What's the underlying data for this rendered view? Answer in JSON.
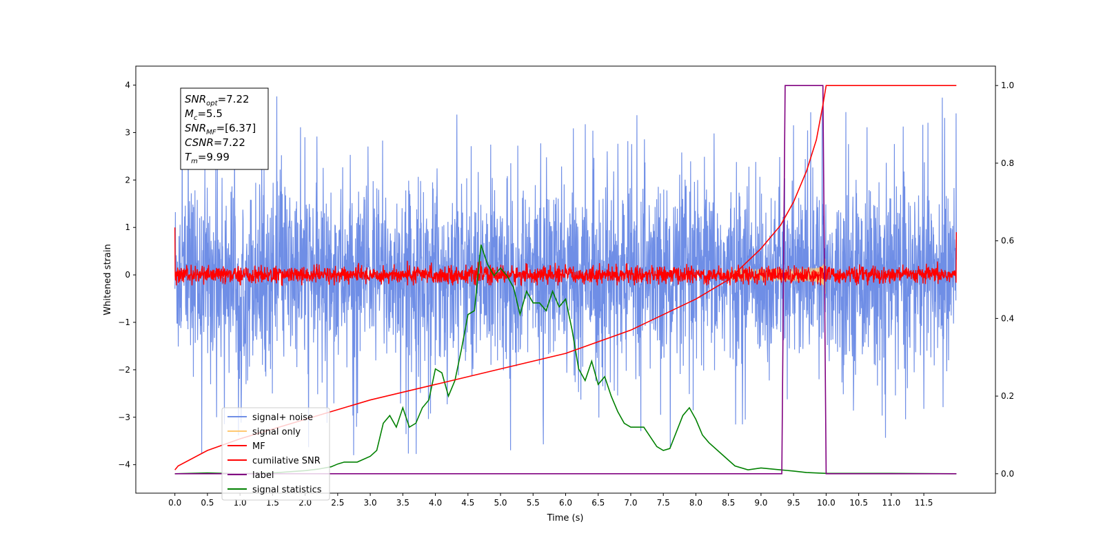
{
  "chart_data": {
    "type": "line",
    "xlabel": "Time (s)",
    "ylabel": "Whitened strain",
    "xlim": [
      -0.6,
      12.6
    ],
    "ylim_left": [
      -4.6,
      4.4
    ],
    "ylim_right": [
      -0.05,
      1.05
    ],
    "x_ticks": [
      "0.0",
      "0.5",
      "1.0",
      "1.5",
      "2.0",
      "2.5",
      "3.0",
      "3.5",
      "4.0",
      "4.5",
      "5.0",
      "5.5",
      "6.0",
      "6.5",
      "7.0",
      "7.5",
      "8.0",
      "8.5",
      "9.0",
      "9.5",
      "10.0",
      "10.5",
      "11.0",
      "11.5"
    ],
    "y_left_ticks": [
      "−4",
      "−3",
      "−2",
      "−1",
      "0",
      "1",
      "2",
      "3",
      "4"
    ],
    "y_right_ticks": [
      "0.0",
      "0.2",
      "0.4",
      "0.6",
      "0.8",
      "1.0"
    ],
    "grid": false,
    "legend_position": "lower-left",
    "legend": [
      {
        "label": "signal+ noise",
        "color": "#6f8ee6"
      },
      {
        "label": "signal only",
        "color": "#ffc870"
      },
      {
        "label": "MF",
        "color": "#ff0000"
      },
      {
        "label": "cumilative SNR",
        "color": "#ff0000"
      },
      {
        "label": "label",
        "color": "#800080"
      },
      {
        "label": "signal statistics",
        "color": "#008000"
      }
    ],
    "annotation": {
      "lines": [
        {
          "sym": "SNR",
          "sub": "opt",
          "value": "=7.22"
        },
        {
          "sym": "M",
          "sub": "c",
          "value": "=5.5"
        },
        {
          "sym": "SNR",
          "sub": "MF",
          "value": "=[6.37]"
        },
        {
          "sym": "CSNR",
          "sub": "",
          "value": "=7.22"
        },
        {
          "sym": "T",
          "sub": "m",
          "value": "=9.99"
        }
      ]
    },
    "series": [
      {
        "name": "signal+ noise",
        "axis": "left",
        "color": "#6f8ee6",
        "x_range": [
          0.0,
          12.0
        ],
        "envelope": {
          "typical_low": -1.3,
          "typical_high": 1.3,
          "spike_max": 4.0,
          "spike_min": -3.8
        }
      },
      {
        "name": "signal only",
        "axis": "left",
        "color": "#ffc870",
        "chirp": {
          "t_start": 8.5,
          "t_merge": 9.99,
          "peak_amplitude": 0.5
        }
      },
      {
        "name": "MF",
        "axis": "left",
        "color": "#ff0000",
        "x_range": [
          0.0,
          12.0
        ],
        "envelope": {
          "typical_low": -0.2,
          "typical_high": 0.25,
          "start_value": 1.0,
          "end_value": 0.9
        }
      },
      {
        "name": "cumilative SNR",
        "axis": "right",
        "color": "#ff0000",
        "x": [
          0.0,
          0.05,
          0.5,
          1.0,
          2.0,
          3.0,
          4.0,
          5.0,
          6.0,
          7.0,
          8.0,
          8.5,
          9.0,
          9.3,
          9.5,
          9.7,
          9.85,
          9.95,
          10.0,
          11.0,
          12.0
        ],
        "values": [
          0.01,
          0.02,
          0.06,
          0.09,
          0.14,
          0.19,
          0.23,
          0.27,
          0.31,
          0.37,
          0.45,
          0.5,
          0.58,
          0.64,
          0.7,
          0.78,
          0.86,
          0.95,
          1.0,
          1.0,
          1.0
        ]
      },
      {
        "name": "label",
        "axis": "right",
        "color": "#800080",
        "x": [
          0.0,
          9.32,
          9.37,
          9.95,
          10.0,
          12.0
        ],
        "values": [
          0.0,
          0.0,
          1.0,
          1.0,
          0.0,
          0.0
        ]
      },
      {
        "name": "signal statistics",
        "axis": "right",
        "color": "#008000",
        "x": [
          0.0,
          0.5,
          1.0,
          1.5,
          2.0,
          2.2,
          2.4,
          2.5,
          2.6,
          2.8,
          3.0,
          3.1,
          3.2,
          3.3,
          3.4,
          3.5,
          3.6,
          3.7,
          3.8,
          3.9,
          4.0,
          4.1,
          4.2,
          4.3,
          4.4,
          4.5,
          4.6,
          4.7,
          4.8,
          4.9,
          5.0,
          5.1,
          5.2,
          5.3,
          5.4,
          5.5,
          5.6,
          5.7,
          5.8,
          5.9,
          6.0,
          6.1,
          6.2,
          6.3,
          6.4,
          6.5,
          6.6,
          6.7,
          6.8,
          6.9,
          7.0,
          7.2,
          7.4,
          7.5,
          7.6,
          7.8,
          7.9,
          8.0,
          8.1,
          8.2,
          8.4,
          8.6,
          8.8,
          9.0,
          9.3,
          9.5,
          9.7,
          10.0,
          11.0,
          12.0
        ],
        "values": [
          0.0,
          0.002,
          0.0,
          0.002,
          0.008,
          0.012,
          0.018,
          0.025,
          0.03,
          0.03,
          0.045,
          0.06,
          0.13,
          0.15,
          0.12,
          0.17,
          0.12,
          0.13,
          0.17,
          0.19,
          0.27,
          0.26,
          0.2,
          0.24,
          0.32,
          0.41,
          0.42,
          0.59,
          0.54,
          0.51,
          0.53,
          0.51,
          0.48,
          0.41,
          0.47,
          0.44,
          0.44,
          0.42,
          0.47,
          0.43,
          0.45,
          0.37,
          0.27,
          0.24,
          0.29,
          0.23,
          0.25,
          0.2,
          0.16,
          0.13,
          0.12,
          0.12,
          0.07,
          0.06,
          0.065,
          0.15,
          0.17,
          0.14,
          0.1,
          0.08,
          0.05,
          0.02,
          0.01,
          0.015,
          0.01,
          0.007,
          0.003,
          0.001,
          0.001,
          0.0
        ]
      }
    ]
  }
}
